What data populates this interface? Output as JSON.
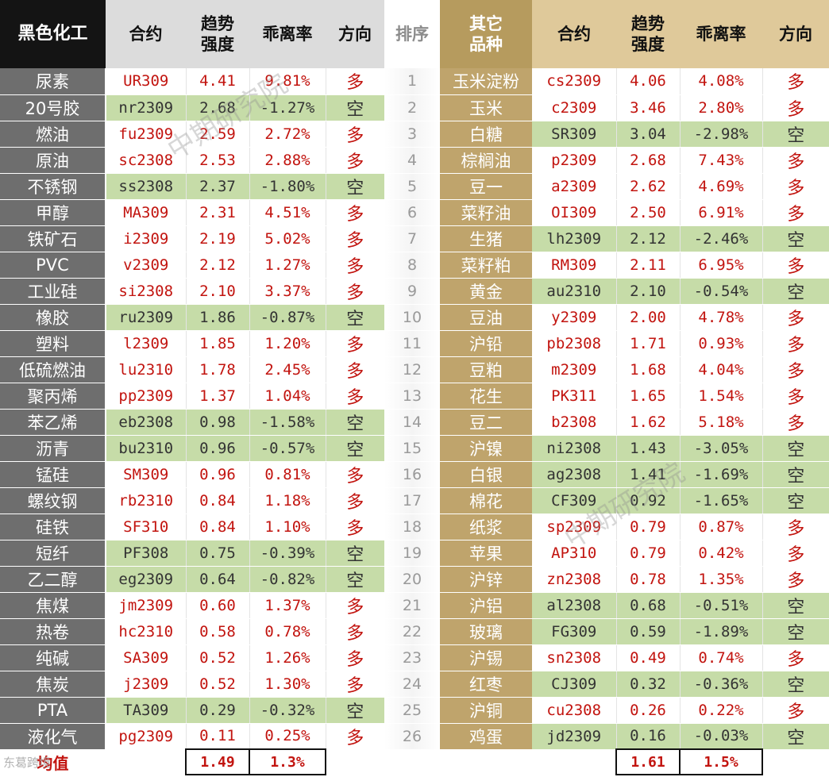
{
  "header": {
    "left_group": "黑色化工",
    "contract": "合约",
    "trend_line1": "趋势",
    "trend_line2": "强度",
    "deviation": "乖离率",
    "direction": "方向",
    "rank": "排序",
    "right_group_line1": "其它",
    "right_group_line2": "品种",
    "contract_r": "合约",
    "trend_r_line1": "趋势",
    "trend_r_line2": "强度",
    "deviation_r": "乖离率",
    "direction_r": "方向"
  },
  "rows": [
    {
      "ln": "尿素",
      "lc": "UR309",
      "lt": "4.41",
      "lp": "9.81%",
      "ld": "多",
      "rank": "1",
      "rn": "玉米淀粉",
      "rc": "cs2309",
      "rt": "4.06",
      "rp": "4.08%",
      "rd": "多"
    },
    {
      "ln": "20号胶",
      "lc": "nr2309",
      "lt": "2.68",
      "lp": "-1.27%",
      "ld": "空",
      "rank": "2",
      "rn": "玉米",
      "rc": "c2309",
      "rt": "3.46",
      "rp": "2.80%",
      "rd": "多"
    },
    {
      "ln": "燃油",
      "lc": "fu2309",
      "lt": "2.59",
      "lp": "2.72%",
      "ld": "多",
      "rank": "3",
      "rn": "白糖",
      "rc": "SR309",
      "rt": "3.04",
      "rp": "-2.98%",
      "rd": "空"
    },
    {
      "ln": "原油",
      "lc": "sc2308",
      "lt": "2.53",
      "lp": "2.88%",
      "ld": "多",
      "rank": "4",
      "rn": "棕榈油",
      "rc": "p2309",
      "rt": "2.68",
      "rp": "7.43%",
      "rd": "多"
    },
    {
      "ln": "不锈钢",
      "lc": "ss2308",
      "lt": "2.37",
      "lp": "-1.80%",
      "ld": "空",
      "rank": "5",
      "rn": "豆一",
      "rc": "a2309",
      "rt": "2.62",
      "rp": "4.69%",
      "rd": "多"
    },
    {
      "ln": "甲醇",
      "lc": "MA309",
      "lt": "2.31",
      "lp": "4.51%",
      "ld": "多",
      "rank": "6",
      "rn": "菜籽油",
      "rc": "OI309",
      "rt": "2.50",
      "rp": "6.91%",
      "rd": "多"
    },
    {
      "ln": "铁矿石",
      "lc": "i2309",
      "lt": "2.19",
      "lp": "5.02%",
      "ld": "多",
      "rank": "7",
      "rn": "生猪",
      "rc": "lh2309",
      "rt": "2.12",
      "rp": "-2.46%",
      "rd": "空"
    },
    {
      "ln": "PVC",
      "lc": "v2309",
      "lt": "2.12",
      "lp": "1.27%",
      "ld": "多",
      "rank": "8",
      "rn": "菜籽粕",
      "rc": "RM309",
      "rt": "2.11",
      "rp": "6.95%",
      "rd": "多"
    },
    {
      "ln": "工业硅",
      "lc": "si2308",
      "lt": "2.10",
      "lp": "3.37%",
      "ld": "多",
      "rank": "9",
      "rn": "黄金",
      "rc": "au2310",
      "rt": "2.10",
      "rp": "-0.54%",
      "rd": "空"
    },
    {
      "ln": "橡胶",
      "lc": "ru2309",
      "lt": "1.86",
      "lp": "-0.87%",
      "ld": "空",
      "rank": "10",
      "rn": "豆油",
      "rc": "y2309",
      "rt": "2.00",
      "rp": "4.78%",
      "rd": "多"
    },
    {
      "ln": "塑料",
      "lc": "l2309",
      "lt": "1.85",
      "lp": "1.20%",
      "ld": "多",
      "rank": "11",
      "rn": "沪铅",
      "rc": "pb2308",
      "rt": "1.71",
      "rp": "0.93%",
      "rd": "多"
    },
    {
      "ln": "低硫燃油",
      "lc": "lu2310",
      "lt": "1.78",
      "lp": "2.45%",
      "ld": "多",
      "rank": "12",
      "rn": "豆粕",
      "rc": "m2309",
      "rt": "1.68",
      "rp": "4.04%",
      "rd": "多"
    },
    {
      "ln": "聚丙烯",
      "lc": "pp2309",
      "lt": "1.37",
      "lp": "1.04%",
      "ld": "多",
      "rank": "13",
      "rn": "花生",
      "rc": "PK311",
      "rt": "1.65",
      "rp": "1.54%",
      "rd": "多"
    },
    {
      "ln": "苯乙烯",
      "lc": "eb2308",
      "lt": "0.98",
      "lp": "-1.58%",
      "ld": "空",
      "rank": "14",
      "rn": "豆二",
      "rc": "b2308",
      "rt": "1.62",
      "rp": "5.18%",
      "rd": "多"
    },
    {
      "ln": "沥青",
      "lc": "bu2310",
      "lt": "0.96",
      "lp": "-0.57%",
      "ld": "空",
      "rank": "15",
      "rn": "沪镍",
      "rc": "ni2308",
      "rt": "1.43",
      "rp": "-3.05%",
      "rd": "空"
    },
    {
      "ln": "锰硅",
      "lc": "SM309",
      "lt": "0.96",
      "lp": "0.81%",
      "ld": "多",
      "rank": "16",
      "rn": "白银",
      "rc": "ag2308",
      "rt": "1.41",
      "rp": "-1.69%",
      "rd": "空"
    },
    {
      "ln": "螺纹钢",
      "lc": "rb2310",
      "lt": "0.84",
      "lp": "1.18%",
      "ld": "多",
      "rank": "17",
      "rn": "棉花",
      "rc": "CF309",
      "rt": "0.92",
      "rp": "-1.65%",
      "rd": "空"
    },
    {
      "ln": "硅铁",
      "lc": "SF310",
      "lt": "0.84",
      "lp": "1.10%",
      "ld": "多",
      "rank": "18",
      "rn": "纸浆",
      "rc": "sp2309",
      "rt": "0.79",
      "rp": "0.87%",
      "rd": "多"
    },
    {
      "ln": "短纤",
      "lc": "PF308",
      "lt": "0.75",
      "lp": "-0.39%",
      "ld": "空",
      "rank": "19",
      "rn": "苹果",
      "rc": "AP310",
      "rt": "0.79",
      "rp": "0.42%",
      "rd": "多"
    },
    {
      "ln": "乙二醇",
      "lc": "eg2309",
      "lt": "0.64",
      "lp": "-0.82%",
      "ld": "空",
      "rank": "20",
      "rn": "沪锌",
      "rc": "zn2308",
      "rt": "0.78",
      "rp": "1.35%",
      "rd": "多"
    },
    {
      "ln": "焦煤",
      "lc": "jm2309",
      "lt": "0.60",
      "lp": "1.37%",
      "ld": "多",
      "rank": "21",
      "rn": "沪铝",
      "rc": "al2308",
      "rt": "0.68",
      "rp": "-0.51%",
      "rd": "空"
    },
    {
      "ln": "热卷",
      "lc": "hc2310",
      "lt": "0.58",
      "lp": "0.78%",
      "ld": "多",
      "rank": "22",
      "rn": "玻璃",
      "rc": "FG309",
      "rt": "0.59",
      "rp": "-1.89%",
      "rd": "空"
    },
    {
      "ln": "纯碱",
      "lc": "SA309",
      "lt": "0.52",
      "lp": "1.26%",
      "ld": "多",
      "rank": "23",
      "rn": "沪锡",
      "rc": "sn2308",
      "rt": "0.49",
      "rp": "0.74%",
      "rd": "多"
    },
    {
      "ln": "焦炭",
      "lc": "j2309",
      "lt": "0.52",
      "lp": "1.30%",
      "ld": "多",
      "rank": "24",
      "rn": "红枣",
      "rc": "CJ309",
      "rt": "0.32",
      "rp": "-0.36%",
      "rd": "空"
    },
    {
      "ln": "PTA",
      "lc": "TA309",
      "lt": "0.29",
      "lp": "-0.32%",
      "ld": "空",
      "rank": "25",
      "rn": "沪铜",
      "rc": "cu2308",
      "rt": "0.26",
      "rp": "0.22%",
      "rd": "多"
    },
    {
      "ln": "液化气",
      "lc": "pg2309",
      "lt": "0.11",
      "lp": "0.25%",
      "ld": "多",
      "rank": "26",
      "rn": "鸡蛋",
      "rc": "jd2309",
      "rt": "0.16",
      "rp": "-0.03%",
      "rd": "空"
    }
  ],
  "average": {
    "label": "均值",
    "left_trend": "1.49",
    "left_deviation": "1.3%",
    "right_trend": "1.61",
    "right_deviation": "1.5%"
  },
  "watermark": "中期研究院",
  "corner_logo": "东葛跨境",
  "colors": {
    "left_header_bg": "#141414",
    "left_name_bg": "#6e6e6e",
    "right_header_bg": "#b69b5e",
    "right_name_bg": "#bfa46c",
    "short_highlight": "#c6dca8",
    "value_red": "#c2140f"
  }
}
